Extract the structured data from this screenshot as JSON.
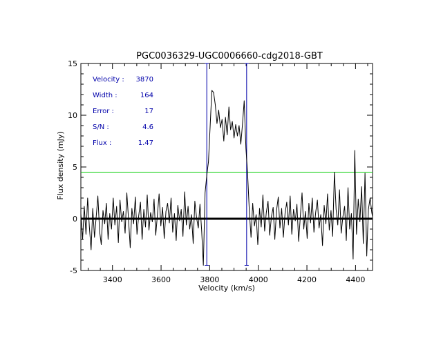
{
  "chart_data": {
    "type": "line",
    "title": "PGC0036329-UGC0006660-cdg2018-GBT",
    "xlabel": "Velocity (km/s)",
    "ylabel": "Flux density (mJy)",
    "xlim": [
      3270,
      4470
    ],
    "ylim": [
      -5,
      15
    ],
    "x_ticks": [
      3400,
      3600,
      3800,
      4000,
      4200,
      4400
    ],
    "y_ticks": [
      -5,
      0,
      5,
      10,
      15
    ],
    "x_tick_labels": [
      "3400",
      "3600",
      "3800",
      "4000",
      "4200",
      "4400"
    ],
    "y_tick_labels": [
      "-5",
      "0",
      "5",
      "10",
      "15"
    ],
    "grid": false,
    "colors": {
      "spectrum": "#000000",
      "zero_line": "#000000",
      "threshold_line": "#00cc00",
      "marker_lines": "#0000aa",
      "annotation_text": "#0000aa"
    },
    "annotations": [
      {
        "label": "Velocity :",
        "value": "3870"
      },
      {
        "label": "Width :",
        "value": "164"
      },
      {
        "label": "Error :",
        "value": "17"
      },
      {
        "label": "S/N :",
        "value": "4.6"
      },
      {
        "label": "Flux :",
        "value": "1.47"
      }
    ],
    "reference_lines": {
      "zero_level": 0,
      "threshold_level": 4.5,
      "velocity_markers": [
        3788,
        3952
      ]
    },
    "series": [
      {
        "values": [
          [
            3270,
            0.5
          ],
          [
            3277,
            -2.0
          ],
          [
            3284,
            1.2
          ],
          [
            3291,
            -1.5
          ],
          [
            3298,
            2.0
          ],
          [
            3305,
            -0.8
          ],
          [
            3312,
            -3.0
          ],
          [
            3319,
            1.0
          ],
          [
            3326,
            -1.8
          ],
          [
            3333,
            0.2
          ],
          [
            3340,
            2.2
          ],
          [
            3347,
            -1.2
          ],
          [
            3354,
            -2.5
          ],
          [
            3361,
            0.8
          ],
          [
            3368,
            -0.5
          ],
          [
            3375,
            1.5
          ],
          [
            3382,
            -2.0
          ],
          [
            3389,
            0.5
          ],
          [
            3396,
            -1.0
          ],
          [
            3403,
            2.0
          ],
          [
            3410,
            -0.6
          ],
          [
            3417,
            1.2
          ],
          [
            3424,
            -2.3
          ],
          [
            3431,
            1.8
          ],
          [
            3438,
            -0.3
          ],
          [
            3445,
            0.7
          ],
          [
            3452,
            -1.4
          ],
          [
            3459,
            2.5
          ],
          [
            3466,
            0.0
          ],
          [
            3473,
            -2.8
          ],
          [
            3480,
            1.0
          ],
          [
            3487,
            -0.5
          ],
          [
            3494,
            2.1
          ],
          [
            3501,
            -1.5
          ],
          [
            3508,
            0.3
          ],
          [
            3515,
            1.6
          ],
          [
            3522,
            -2.0
          ],
          [
            3529,
            0.9
          ],
          [
            3536,
            -0.8
          ],
          [
            3543,
            2.3
          ],
          [
            3550,
            -1.1
          ],
          [
            3557,
            0.6
          ],
          [
            3564,
            -0.3
          ],
          [
            3571,
            1.9
          ],
          [
            3578,
            -1.6
          ],
          [
            3585,
            0.4
          ],
          [
            3592,
            2.4
          ],
          [
            3599,
            -0.7
          ],
          [
            3606,
            1.1
          ],
          [
            3613,
            -1.9
          ],
          [
            3620,
            0.7
          ],
          [
            3627,
            1.5
          ],
          [
            3634,
            -0.4
          ],
          [
            3641,
            2.0
          ],
          [
            3648,
            -1.3
          ],
          [
            3655,
            0.5
          ],
          [
            3662,
            -2.1
          ],
          [
            3669,
            1.3
          ],
          [
            3676,
            -0.2
          ],
          [
            3683,
            0.9
          ],
          [
            3690,
            -1.7
          ],
          [
            3697,
            2.6
          ],
          [
            3704,
            -0.6
          ],
          [
            3711,
            1.2
          ],
          [
            3718,
            -1.0
          ],
          [
            3725,
            0.4
          ],
          [
            3732,
            -2.4
          ],
          [
            3739,
            1.7
          ],
          [
            3746,
            0.1
          ],
          [
            3753,
            -0.9
          ],
          [
            3760,
            1.4
          ],
          [
            3767,
            -1.2
          ],
          [
            3774,
            -4.5
          ],
          [
            3781,
            2.5
          ],
          [
            3788,
            4.2
          ],
          [
            3795,
            5.5
          ],
          [
            3802,
            9.0
          ],
          [
            3809,
            12.4
          ],
          [
            3816,
            12.2
          ],
          [
            3823,
            11.0
          ],
          [
            3830,
            9.2
          ],
          [
            3837,
            10.5
          ],
          [
            3844,
            8.8
          ],
          [
            3851,
            9.6
          ],
          [
            3858,
            7.5
          ],
          [
            3865,
            9.8
          ],
          [
            3872,
            8.1
          ],
          [
            3879,
            10.8
          ],
          [
            3886,
            8.6
          ],
          [
            3893,
            9.4
          ],
          [
            3900,
            7.8
          ],
          [
            3907,
            9.1
          ],
          [
            3914,
            8.0
          ],
          [
            3921,
            9.0
          ],
          [
            3928,
            7.2
          ],
          [
            3935,
            9.2
          ],
          [
            3942,
            11.4
          ],
          [
            3949,
            6.8
          ],
          [
            3956,
            4.4
          ],
          [
            3963,
            0.8
          ],
          [
            3970,
            -1.8
          ],
          [
            3977,
            1.5
          ],
          [
            3984,
            -0.7
          ],
          [
            3991,
            0.4
          ],
          [
            3998,
            -2.5
          ],
          [
            4005,
            1.0
          ],
          [
            4012,
            -0.8
          ],
          [
            4019,
            2.3
          ],
          [
            4026,
            -1.2
          ],
          [
            4033,
            0.6
          ],
          [
            4040,
            1.7
          ],
          [
            4047,
            -1.6
          ],
          [
            4054,
            0.2
          ],
          [
            4061,
            1.1
          ],
          [
            4068,
            -2.0
          ],
          [
            4075,
            0.8
          ],
          [
            4082,
            2.1
          ],
          [
            4089,
            -0.9
          ],
          [
            4096,
            1.0
          ],
          [
            4103,
            -1.8
          ],
          [
            4110,
            0.5
          ],
          [
            4117,
            1.6
          ],
          [
            4124,
            -0.6
          ],
          [
            4131,
            2.2
          ],
          [
            4138,
            -1.5
          ],
          [
            4145,
            0.9
          ],
          [
            4152,
            -0.2
          ],
          [
            4159,
            1.4
          ],
          [
            4166,
            -2.2
          ],
          [
            4173,
            0.3
          ],
          [
            4180,
            2.5
          ],
          [
            4187,
            -1.0
          ],
          [
            4194,
            0.7
          ],
          [
            4201,
            -1.9
          ],
          [
            4208,
            1.5
          ],
          [
            4215,
            -0.4
          ],
          [
            4222,
            2.0
          ],
          [
            4229,
            -1.3
          ],
          [
            4236,
            0.6
          ],
          [
            4243,
            1.8
          ],
          [
            4250,
            -0.9
          ],
          [
            4257,
            0.4
          ],
          [
            4264,
            -2.6
          ],
          [
            4271,
            1.3
          ],
          [
            4278,
            -0.5
          ],
          [
            4285,
            2.4
          ],
          [
            4292,
            -1.1
          ],
          [
            4299,
            0.8
          ],
          [
            4306,
            -1.7
          ],
          [
            4313,
            4.5
          ],
          [
            4320,
            0.9
          ],
          [
            4327,
            -0.6
          ],
          [
            4334,
            2.8
          ],
          [
            4341,
            -1.4
          ],
          [
            4348,
            0.2
          ],
          [
            4355,
            1.2
          ],
          [
            4362,
            -2.1
          ],
          [
            4369,
            3.0
          ],
          [
            4376,
            -1.0
          ],
          [
            4383,
            0.5
          ],
          [
            4390,
            -3.9
          ],
          [
            4397,
            6.6
          ],
          [
            4404,
            -1.5
          ],
          [
            4411,
            1.9
          ],
          [
            4418,
            -0.3
          ],
          [
            4425,
            3.1
          ],
          [
            4432,
            -2.4
          ],
          [
            4439,
            4.4
          ],
          [
            4446,
            -3.6
          ],
          [
            4453,
            0.9
          ],
          [
            4460,
            2.0
          ],
          [
            4467,
            0.6
          ],
          [
            4470,
            0.2
          ]
        ]
      }
    ]
  }
}
